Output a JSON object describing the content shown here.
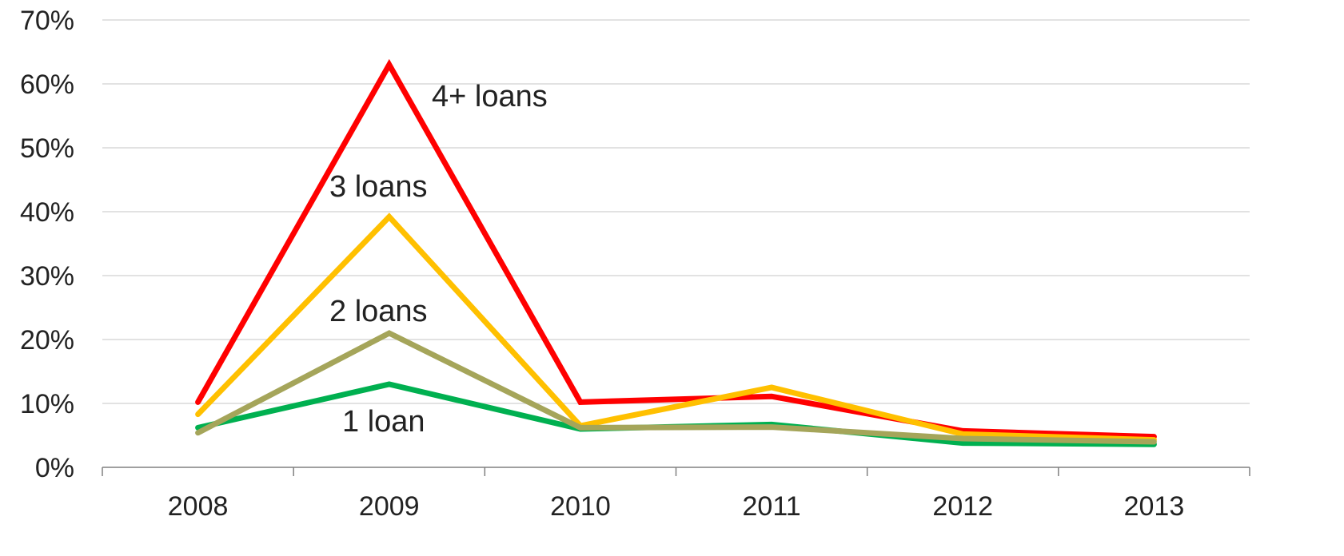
{
  "chart_data": {
    "type": "line",
    "title": "",
    "xlabel": "",
    "ylabel": "",
    "categories": [
      "2008",
      "2009",
      "2010",
      "2011",
      "2012",
      "2013"
    ],
    "ylim": [
      0,
      70
    ],
    "yticks": [
      0,
      10,
      20,
      30,
      40,
      50,
      60,
      70
    ],
    "ytick_labels": [
      "0%",
      "10%",
      "20%",
      "30%",
      "40%",
      "50%",
      "60%",
      "70%"
    ],
    "grid": true,
    "legend": "none",
    "series": [
      {
        "name": "1 loan",
        "color": "#00b050",
        "values": [
          6.2,
          13.0,
          6.0,
          6.7,
          3.8,
          3.6
        ]
      },
      {
        "name": "2 loans",
        "color": "#a5a55a",
        "values": [
          5.4,
          21.0,
          6.2,
          6.3,
          4.5,
          4.0
        ]
      },
      {
        "name": "3 loans",
        "color": "#ffc000",
        "values": [
          8.3,
          39.2,
          6.5,
          12.5,
          5.2,
          4.3
        ]
      },
      {
        "name": "4+ loans",
        "color": "#ff0000",
        "values": [
          10.2,
          63.0,
          10.2,
          11.1,
          5.7,
          4.8
        ]
      }
    ]
  }
}
